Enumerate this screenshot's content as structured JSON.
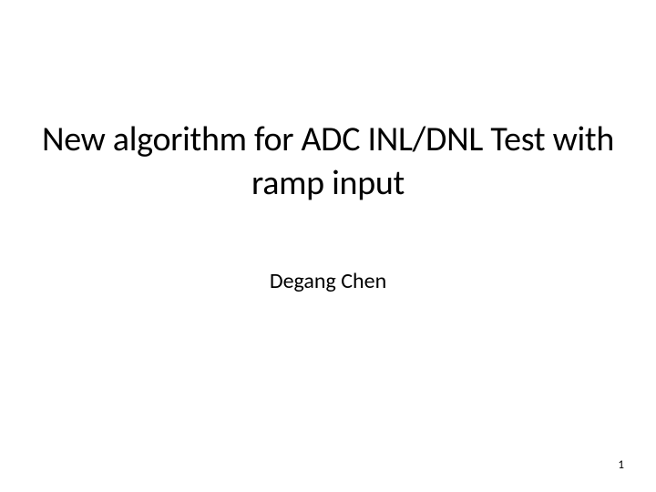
{
  "slide": {
    "title": "New algorithm for ADC INL/DNL Test with ramp input",
    "author": "Degang Chen",
    "page_number": "1",
    "background_color": "#ffffff",
    "title_fontsize": 38,
    "author_fontsize": 24,
    "pagenum_fontsize": 13,
    "text_color": "#000000"
  }
}
